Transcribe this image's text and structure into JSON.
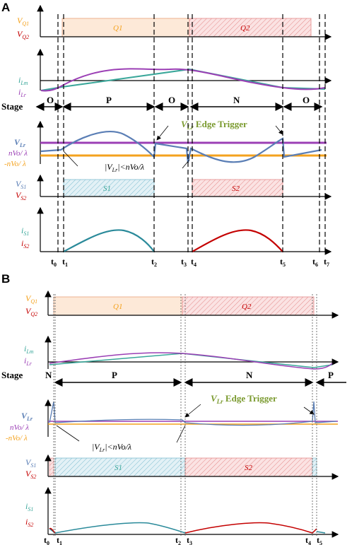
{
  "panel_a": {
    "letter": "A",
    "gate_labels": [
      "V",
      "Q1",
      "V",
      "Q2"
    ],
    "gate_boxes": [
      "Q1",
      "Q2"
    ],
    "current_labels": [
      "i",
      "Lm",
      "i",
      "Lr"
    ],
    "stage_title": "Stage",
    "stages": [
      "O",
      "P",
      "O",
      "N",
      "O"
    ],
    "trigger_text": "Edge Trigger",
    "trigger_prefix": "V",
    "trigger_sub": "Lr",
    "voltage_labels": [
      "V",
      "Lr",
      "nVo/ λ",
      "-nVo/ λ"
    ],
    "condition_text": "|V",
    "condition_sub": "Lr",
    "condition_rest": "|<nVo/λ",
    "switch_labels": [
      "V",
      "S1",
      "V",
      "S2"
    ],
    "switch_boxes": [
      "S1",
      "S2"
    ],
    "diode_labels": [
      "i",
      "S1",
      "i",
      "S2"
    ],
    "time_labels": [
      "t",
      "0",
      "t",
      "1",
      "t",
      "2",
      "t",
      "3",
      "t",
      "4",
      "t",
      "5",
      "t",
      "6",
      "t",
      "7"
    ]
  },
  "panel_b": {
    "letter": "B",
    "gate_labels": [
      "V",
      "Q1",
      "V",
      "Q2"
    ],
    "gate_boxes": [
      "Q1",
      "Q2"
    ],
    "current_labels": [
      "i",
      "Lm",
      "i",
      "Lr"
    ],
    "stage_title": "Stage",
    "stages": [
      "N",
      "P",
      "N",
      "P"
    ],
    "trigger_text": "Edge Trigger",
    "trigger_prefix": "V",
    "trigger_sub": "Lr",
    "voltage_labels": [
      "V",
      "Lr",
      "nVo/ λ",
      "-nVo/ λ"
    ],
    "condition_text": "|V",
    "condition_sub": "Lr",
    "condition_rest": "|<nVo/λ",
    "switch_labels": [
      "V",
      "S1",
      "V",
      "S2"
    ],
    "switch_boxes": [
      "S1",
      "S2"
    ],
    "diode_labels": [
      "i",
      "S1",
      "i",
      "S2"
    ],
    "time_labels": [
      "t",
      "0",
      "t",
      "1",
      "t",
      "2",
      "t",
      "3",
      "t",
      "4",
      "t",
      "5"
    ]
  },
  "colors": {
    "orange": "#f4a21e",
    "red": "#c40000",
    "teal": "#3aa79a",
    "purple": "#9b3fb5",
    "blue": "#5a7eb5",
    "green": "#7a9a2e",
    "cyan_hatch": "#7fbfd1",
    "red_hatch": "#e48a8a",
    "peach": "#fde9d8"
  }
}
